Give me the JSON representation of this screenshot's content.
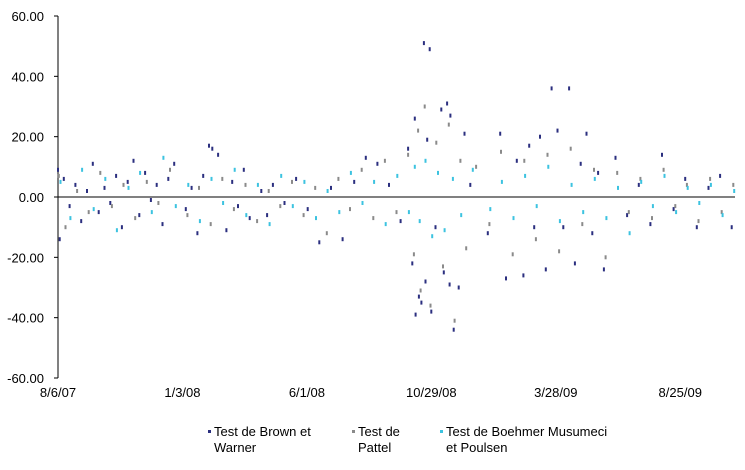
{
  "chart_data": {
    "type": "scatter",
    "title": "",
    "xlabel": "",
    "ylabel": "",
    "ylim": [
      -60,
      60
    ],
    "y_ticks": [
      "60.00",
      "40.00",
      "20.00",
      "0.00",
      "-20.00",
      "-40.00",
      "-60.00"
    ],
    "x_tick_labels": [
      "8/6/07",
      "1/3/08",
      "6/1/08",
      "10/29/08",
      "3/28/09",
      "8/25/09"
    ],
    "xlim": [
      "8/6/07",
      "10/30/09"
    ],
    "grid": false,
    "legend_position": "bottom",
    "series": [
      {
        "name": "Test de Brown et Warner",
        "color": "#2b2f7f",
        "points": [
          [
            "8/6/07",
            9
          ],
          [
            "8/8/07",
            -14
          ],
          [
            "8/13/07",
            6
          ],
          [
            "8/20/07",
            -3
          ],
          [
            "8/27/07",
            4
          ],
          [
            "9/3/07",
            -8
          ],
          [
            "9/10/07",
            2
          ],
          [
            "9/17/07",
            11
          ],
          [
            "9/24/07",
            -5
          ],
          [
            "10/1/07",
            3
          ],
          [
            "10/8/07",
            -2
          ],
          [
            "10/15/07",
            7
          ],
          [
            "10/22/07",
            -10
          ],
          [
            "10/29/07",
            5
          ],
          [
            "11/5/07",
            12
          ],
          [
            "11/12/07",
            -6
          ],
          [
            "11/19/07",
            8
          ],
          [
            "11/26/07",
            -1
          ],
          [
            "12/3/07",
            4
          ],
          [
            "12/10/07",
            -9
          ],
          [
            "12/17/07",
            6
          ],
          [
            "12/24/07",
            11
          ],
          [
            "1/7/08",
            -4
          ],
          [
            "1/14/08",
            3
          ],
          [
            "1/21/08",
            -12
          ],
          [
            "1/28/08",
            7
          ],
          [
            "2/4/08",
            17
          ],
          [
            "2/8/08",
            16
          ],
          [
            "2/15/08",
            14
          ],
          [
            "2/25/08",
            -11
          ],
          [
            "3/3/08",
            5
          ],
          [
            "3/10/08",
            -3
          ],
          [
            "3/17/08",
            9
          ],
          [
            "3/24/08",
            -7
          ],
          [
            "4/7/08",
            2
          ],
          [
            "4/14/08",
            -6
          ],
          [
            "4/21/08",
            4
          ],
          [
            "5/5/08",
            -2
          ],
          [
            "5/19/08",
            6
          ],
          [
            "6/2/08",
            -4
          ],
          [
            "6/16/08",
            -15
          ],
          [
            "6/30/08",
            3
          ],
          [
            "7/14/08",
            -14
          ],
          [
            "7/28/08",
            5
          ],
          [
            "8/11/08",
            13
          ],
          [
            "8/25/08",
            11
          ],
          [
            "9/8/08",
            4
          ],
          [
            "9/22/08",
            -8
          ],
          [
            "10/1/08",
            16
          ],
          [
            "10/6/08",
            -22
          ],
          [
            "10/9/08",
            26
          ],
          [
            "10/10/08",
            -39
          ],
          [
            "10/14/08",
            -33
          ],
          [
            "10/17/08",
            -35
          ],
          [
            "10/20/08",
            51
          ],
          [
            "10/22/08",
            -28
          ],
          [
            "10/24/08",
            19
          ],
          [
            "10/27/08",
            49
          ],
          [
            "10/29/08",
            -38
          ],
          [
            "11/3/08",
            -10
          ],
          [
            "11/10/08",
            29
          ],
          [
            "11/13/08",
            -25
          ],
          [
            "11/17/08",
            31
          ],
          [
            "11/20/08",
            -29
          ],
          [
            "11/21/08",
            27
          ],
          [
            "11/25/08",
            -44
          ],
          [
            "12/1/08",
            -30
          ],
          [
            "12/8/08",
            21
          ],
          [
            "12/15/08",
            4
          ],
          [
            "1/5/09",
            -12
          ],
          [
            "1/20/09",
            21
          ],
          [
            "1/27/09",
            -27
          ],
          [
            "2/9/09",
            12
          ],
          [
            "2/17/09",
            -26
          ],
          [
            "2/24/09",
            17
          ],
          [
            "3/2/09",
            -10
          ],
          [
            "3/9/09",
            20
          ],
          [
            "3/16/09",
            -24
          ],
          [
            "3/23/09",
            36
          ],
          [
            "3/30/09",
            22
          ],
          [
            "4/6/09",
            -10
          ],
          [
            "4/13/09",
            36
          ],
          [
            "4/20/09",
            -22
          ],
          [
            "4/27/09",
            11
          ],
          [
            "5/4/09",
            21
          ],
          [
            "5/11/09",
            -12
          ],
          [
            "5/18/09",
            8
          ],
          [
            "5/25/09",
            -24
          ],
          [
            "6/8/09",
            13
          ],
          [
            "6/22/09",
            -6
          ],
          [
            "7/6/09",
            4
          ],
          [
            "7/20/09",
            -9
          ],
          [
            "8/3/09",
            14
          ],
          [
            "8/17/09",
            -4
          ],
          [
            "8/31/09",
            6
          ],
          [
            "9/14/09",
            -10
          ],
          [
            "9/28/09",
            3
          ],
          [
            "10/12/09",
            7
          ],
          [
            "10/26/09",
            -10
          ]
        ]
      },
      {
        "name": "Test de Pattel",
        "color": "#8a8a8a",
        "points": [
          [
            "8/7/07",
            7
          ],
          [
            "8/15/07",
            -10
          ],
          [
            "8/29/07",
            2
          ],
          [
            "9/12/07",
            -5
          ],
          [
            "9/26/07",
            8
          ],
          [
            "10/10/07",
            -3
          ],
          [
            "10/24/07",
            4
          ],
          [
            "11/7/07",
            -7
          ],
          [
            "11/21/07",
            5
          ],
          [
            "12/5/07",
            -2
          ],
          [
            "12/19/07",
            9
          ],
          [
            "1/9/08",
            -6
          ],
          [
            "1/23/08",
            3
          ],
          [
            "2/6/08",
            -9
          ],
          [
            "2/20/08",
            6
          ],
          [
            "3/5/08",
            -4
          ],
          [
            "3/19/08",
            4
          ],
          [
            "4/2/08",
            -8
          ],
          [
            "4/16/08",
            2
          ],
          [
            "4/30/08",
            -3
          ],
          [
            "5/14/08",
            5
          ],
          [
            "5/28/08",
            -6
          ],
          [
            "6/11/08",
            3
          ],
          [
            "6/25/08",
            -12
          ],
          [
            "7/9/08",
            6
          ],
          [
            "7/23/08",
            -4
          ],
          [
            "8/6/08",
            9
          ],
          [
            "8/20/08",
            -7
          ],
          [
            "9/3/08",
            12
          ],
          [
            "9/17/08",
            -5
          ],
          [
            "10/1/08",
            14
          ],
          [
            "10/8/08",
            -19
          ],
          [
            "10/13/08",
            22
          ],
          [
            "10/16/08",
            -31
          ],
          [
            "10/21/08",
            30
          ],
          [
            "10/28/08",
            -36
          ],
          [
            "11/4/08",
            18
          ],
          [
            "11/12/08",
            -23
          ],
          [
            "11/19/08",
            24
          ],
          [
            "11/26/08",
            -41
          ],
          [
            "12/3/08",
            12
          ],
          [
            "12/10/08",
            -17
          ],
          [
            "12/22/08",
            10
          ],
          [
            "1/7/09",
            -9
          ],
          [
            "1/21/09",
            15
          ],
          [
            "2/4/09",
            -19
          ],
          [
            "2/18/09",
            12
          ],
          [
            "3/4/09",
            -14
          ],
          [
            "3/18/09",
            14
          ],
          [
            "4/1/09",
            -18
          ],
          [
            "4/15/09",
            16
          ],
          [
            "4/29/09",
            -9
          ],
          [
            "5/13/09",
            9
          ],
          [
            "5/27/09",
            -20
          ],
          [
            "6/10/09",
            8
          ],
          [
            "6/24/09",
            -5
          ],
          [
            "7/8/09",
            6
          ],
          [
            "7/22/09",
            -7
          ],
          [
            "8/5/09",
            9
          ],
          [
            "8/19/09",
            -3
          ],
          [
            "9/2/09",
            4
          ],
          [
            "9/16/09",
            -8
          ],
          [
            "9/30/09",
            6
          ],
          [
            "10/14/09",
            -5
          ],
          [
            "10/28/09",
            4
          ]
        ]
      },
      {
        "name": "Test de Boehmer Musumeci et Poulsen",
        "color": "#3cc3e0",
        "points": [
          [
            "8/9/07",
            5
          ],
          [
            "8/21/07",
            -7
          ],
          [
            "9/4/07",
            9
          ],
          [
            "9/18/07",
            -4
          ],
          [
            "10/2/07",
            6
          ],
          [
            "10/16/07",
            -11
          ],
          [
            "10/30/07",
            3
          ],
          [
            "11/13/07",
            8
          ],
          [
            "11/27/07",
            -5
          ],
          [
            "12/11/07",
            13
          ],
          [
            "12/26/07",
            -3
          ],
          [
            "1/10/08",
            4
          ],
          [
            "1/24/08",
            -8
          ],
          [
            "2/7/08",
            6
          ],
          [
            "2/21/08",
            -2
          ],
          [
            "3/6/08",
            9
          ],
          [
            "3/20/08",
            -6
          ],
          [
            "4/3/08",
            4
          ],
          [
            "4/17/08",
            -9
          ],
          [
            "5/1/08",
            7
          ],
          [
            "5/15/08",
            -3
          ],
          [
            "5/29/08",
            5
          ],
          [
            "6/12/08",
            -7
          ],
          [
            "6/26/08",
            2
          ],
          [
            "7/10/08",
            -5
          ],
          [
            "7/24/08",
            8
          ],
          [
            "8/7/08",
            -2
          ],
          [
            "8/21/08",
            5
          ],
          [
            "9/4/08",
            -9
          ],
          [
            "9/18/08",
            7
          ],
          [
            "10/2/08",
            -5
          ],
          [
            "10/9/08",
            10
          ],
          [
            "10/15/08",
            -8
          ],
          [
            "10/22/08",
            12
          ],
          [
            "10/30/08",
            -13
          ],
          [
            "11/6/08",
            8
          ],
          [
            "11/14/08",
            -11
          ],
          [
            "11/24/08",
            6
          ],
          [
            "12/4/08",
            -6
          ],
          [
            "12/18/08",
            9
          ],
          [
            "1/8/09",
            -4
          ],
          [
            "1/22/09",
            5
          ],
          [
            "2/5/09",
            -7
          ],
          [
            "2/19/09",
            7
          ],
          [
            "3/5/09",
            -3
          ],
          [
            "3/19/09",
            10
          ],
          [
            "4/2/09",
            -8
          ],
          [
            "4/16/09",
            4
          ],
          [
            "4/30/09",
            -5
          ],
          [
            "5/14/09",
            6
          ],
          [
            "5/28/09",
            -7
          ],
          [
            "6/11/09",
            3
          ],
          [
            "6/25/09",
            -12
          ],
          [
            "7/9/09",
            5
          ],
          [
            "7/23/09",
            -3
          ],
          [
            "8/6/09",
            7
          ],
          [
            "8/20/09",
            -5
          ],
          [
            "9/3/09",
            3
          ],
          [
            "9/17/09",
            -2
          ],
          [
            "10/1/09",
            4
          ],
          [
            "10/15/09",
            -6
          ],
          [
            "10/29/09",
            2
          ]
        ]
      }
    ]
  }
}
